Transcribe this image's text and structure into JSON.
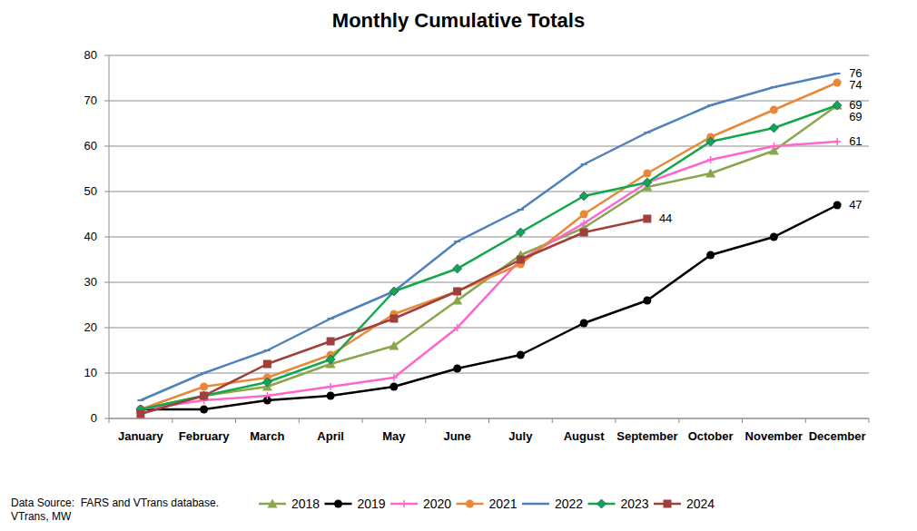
{
  "chart_data": {
    "type": "line",
    "title": "Monthly Cumulative Totals",
    "categories": [
      "January",
      "February",
      "March",
      "April",
      "May",
      "June",
      "July",
      "August",
      "September",
      "October",
      "November",
      "December"
    ],
    "series": [
      {
        "name": "2018",
        "color": "#8aa64b",
        "marker": "triangle",
        "values": [
          2,
          5,
          7,
          12,
          16,
          26,
          36,
          42,
          51,
          54,
          59,
          69
        ],
        "value_labels": [
          null,
          null,
          null,
          null,
          null,
          null,
          null,
          null,
          null,
          null,
          null,
          "69"
        ]
      },
      {
        "name": "2019",
        "color": "#000000",
        "marker": "circle",
        "values": [
          2,
          2,
          4,
          5,
          7,
          11,
          14,
          21,
          26,
          36,
          40,
          47
        ],
        "value_labels": [
          null,
          null,
          null,
          null,
          null,
          null,
          null,
          null,
          null,
          null,
          null,
          "47"
        ]
      },
      {
        "name": "2020",
        "color": "#ff66cc",
        "marker": "plus",
        "values": [
          2,
          4,
          5,
          7,
          9,
          20,
          35,
          43,
          52,
          57,
          60,
          61
        ],
        "value_labels": [
          null,
          null,
          null,
          null,
          null,
          null,
          null,
          null,
          null,
          null,
          null,
          "61"
        ]
      },
      {
        "name": "2021",
        "color": "#e8893a",
        "marker": "circle",
        "values": [
          2,
          7,
          9,
          14,
          23,
          28,
          34,
          45,
          54,
          62,
          68,
          74
        ],
        "value_labels": [
          null,
          null,
          null,
          null,
          null,
          null,
          null,
          null,
          null,
          null,
          null,
          "74"
        ]
      },
      {
        "name": "2022",
        "color": "#4f81bd",
        "marker": "dash",
        "values": [
          4,
          10,
          15,
          22,
          28,
          39,
          46,
          56,
          63,
          69,
          73,
          76
        ],
        "value_labels": [
          null,
          null,
          null,
          null,
          null,
          null,
          null,
          null,
          null,
          null,
          null,
          "76"
        ]
      },
      {
        "name": "2023",
        "color": "#12a84a",
        "marker": "diamond",
        "values": [
          2,
          5,
          8,
          13,
          28,
          33,
          41,
          49,
          52,
          61,
          64,
          69
        ],
        "value_labels": [
          null,
          null,
          null,
          null,
          null,
          null,
          null,
          null,
          null,
          null,
          null,
          "69"
        ]
      },
      {
        "name": "2024",
        "color": "#a0403c",
        "marker": "square",
        "values": [
          1,
          5,
          12,
          17,
          22,
          28,
          35,
          41,
          44,
          null,
          null,
          null
        ],
        "value_labels": [
          null,
          null,
          null,
          null,
          null,
          null,
          null,
          null,
          "44",
          null,
          null,
          null
        ]
      }
    ],
    "ylim": [
      0,
      80
    ],
    "yticks": [
      0,
      10,
      20,
      30,
      40,
      50,
      60,
      70,
      80
    ],
    "grid": true,
    "legend": "bottom",
    "source": [
      "Data Source:  FARS and VTrans database.",
      "VTrans, MW"
    ]
  }
}
